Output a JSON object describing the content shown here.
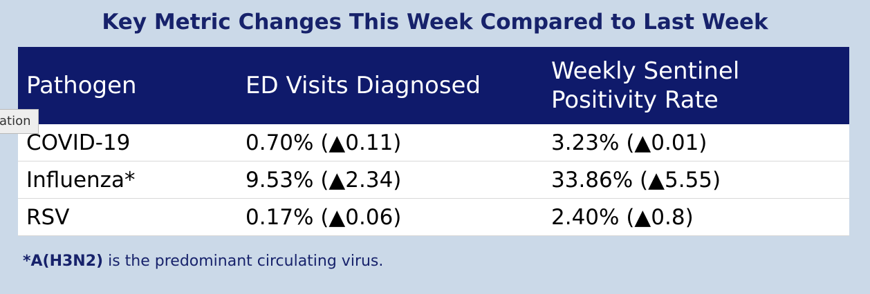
{
  "header": {
    "title": "Key Metric Changes This Week Compared to Last Week"
  },
  "table": {
    "columns": [
      "Pathogen",
      "ED Visits Diagnosed",
      "Weekly Sentinel Positivity Rate"
    ],
    "rows": [
      [
        "COVID-19",
        "0.70% (▲0.11)",
        "3.23% (▲0.01)"
      ],
      [
        "Influenza*",
        "9.53% (▲2.34)",
        "33.86% (▲5.55)"
      ],
      [
        "RSV",
        "0.17% (▲0.06)",
        "2.40% (▲0.8)"
      ]
    ]
  },
  "footnote": {
    "bold": "*A(H3N2)",
    "text": " is the predominant circulating virus."
  },
  "tooltip": {
    "text": "ation"
  }
}
